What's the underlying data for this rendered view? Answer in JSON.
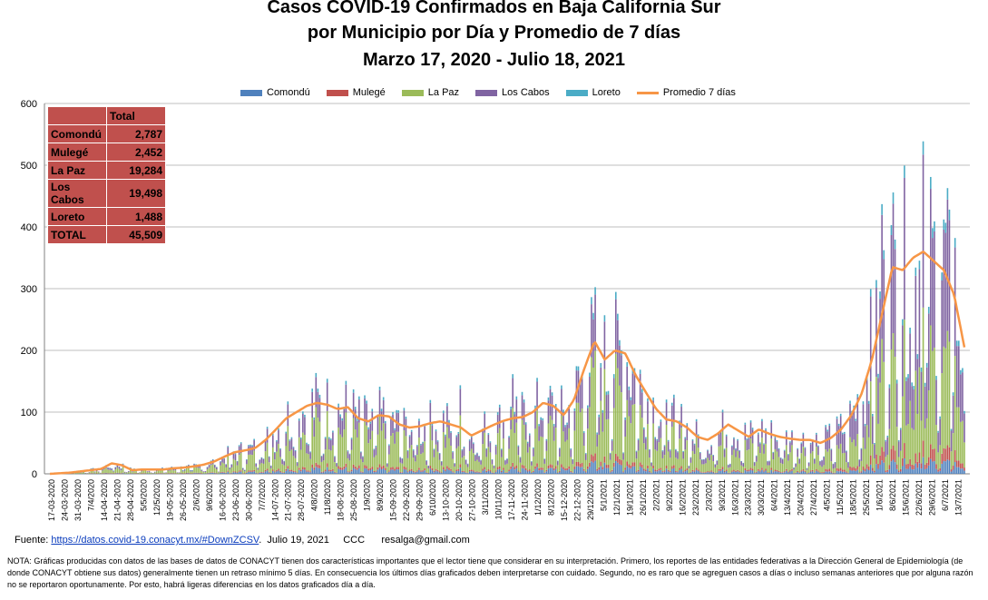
{
  "chart_data": {
    "type": "bar",
    "stacked": true,
    "title": [
      "Casos COVID-19 Confirmados en Baja California Sur",
      "por Municipio por Día y Promedio de 7 días",
      "Marzo 17, 2020 - Julio 18, 2021"
    ],
    "ylim": [
      0,
      600
    ],
    "yticks": [
      0,
      100,
      200,
      300,
      400,
      500,
      600
    ],
    "grid": true,
    "legend_position": "top",
    "series": [
      {
        "name": "Comondú",
        "color": "#4f81bd"
      },
      {
        "name": "Mulegé",
        "color": "#c0504d"
      },
      {
        "name": "La Paz",
        "color": "#9bbb59"
      },
      {
        "name": "Los Cabos",
        "color": "#8064a2"
      },
      {
        "name": "Loreto",
        "color": "#4bacc6"
      },
      {
        "name": "Promedio 7 días",
        "color": "#f79646",
        "type": "line"
      }
    ],
    "x_tick_labels": [
      "17-03-2020",
      "24-03-2020",
      "31-03-2020",
      "7/4/2020",
      "14-04-2020",
      "21-04-2020",
      "28-04-2020",
      "5/5/2020",
      "12/5/2020",
      "19-05-2020",
      "26-05-2020",
      "2/6/2020",
      "9/6/2020",
      "16-06-2020",
      "23-06-2020",
      "30-06-2020",
      "7/7/2020",
      "14-07-2020",
      "21-07-2020",
      "28-07-2020",
      "4/8/2020",
      "11/8/2020",
      "18-08-2020",
      "25-08-2020",
      "1/9/2020",
      "8/9/2020",
      "15-09-2020",
      "22-09-2020",
      "29-09-2020",
      "6/10/2020",
      "13-10-2020",
      "20-10-2020",
      "27-10-2020",
      "3/11/2020",
      "10/11/2020",
      "17-11-2020",
      "24-11-2020",
      "1/12/2020",
      "8/12/2020",
      "15-12-2020",
      "22-12-2020",
      "29/12/2020",
      "5/1/2021",
      "12/1/2021",
      "19/1/2021",
      "26/1/2021",
      "2/2/2021",
      "9/2/2021",
      "16/2/2021",
      "23/2/2021",
      "2/3/2021",
      "9/3/2021",
      "16/3/2021",
      "23/3/2021",
      "30/3/2021",
      "6/4/2021",
      "13/4/2021",
      "20/4/2021",
      "27/4/2021",
      "4/5/2021",
      "11/5/2021",
      "18/5/2021",
      "25/5/2021",
      "1/6/2021",
      "8/6/2021",
      "15/6/2021",
      "22/6/2021",
      "29/6/2021",
      "6/7/2021",
      "13/7/2021"
    ],
    "promedio_7_dias_anchors": [
      [
        0,
        0
      ],
      [
        2,
        2
      ],
      [
        5,
        8
      ],
      [
        6,
        17
      ],
      [
        7,
        14
      ],
      [
        8,
        6
      ],
      [
        9,
        7
      ],
      [
        10,
        7
      ],
      [
        11,
        7
      ],
      [
        12,
        9
      ],
      [
        13,
        10
      ],
      [
        14,
        12
      ],
      [
        15,
        15
      ],
      [
        16,
        20
      ],
      [
        17,
        28
      ],
      [
        18,
        35
      ],
      [
        19,
        38
      ],
      [
        20,
        42
      ],
      [
        21,
        55
      ],
      [
        22,
        72
      ],
      [
        23,
        90
      ],
      [
        24,
        100
      ],
      [
        25,
        110
      ],
      [
        26,
        115
      ],
      [
        27,
        112
      ],
      [
        28,
        105
      ],
      [
        29,
        108
      ],
      [
        30,
        90
      ],
      [
        31,
        85
      ],
      [
        32,
        95
      ],
      [
        33,
        93
      ],
      [
        34,
        80
      ],
      [
        35,
        75
      ],
      [
        36,
        77
      ],
      [
        37,
        82
      ],
      [
        38,
        85
      ],
      [
        39,
        80
      ],
      [
        40,
        75
      ],
      [
        41,
        62
      ],
      [
        42,
        70
      ],
      [
        43,
        78
      ],
      [
        44,
        85
      ],
      [
        45,
        90
      ],
      [
        46,
        92
      ],
      [
        47,
        100
      ],
      [
        48,
        115
      ],
      [
        49,
        110
      ],
      [
        50,
        95
      ],
      [
        51,
        120
      ],
      [
        52,
        170
      ],
      [
        53,
        215
      ],
      [
        54,
        185
      ],
      [
        55,
        200
      ],
      [
        56,
        195
      ],
      [
        57,
        160
      ],
      [
        58,
        132
      ],
      [
        59,
        105
      ],
      [
        60,
        88
      ],
      [
        61,
        85
      ],
      [
        62,
        75
      ],
      [
        63,
        60
      ],
      [
        64,
        55
      ],
      [
        65,
        65
      ],
      [
        66,
        80
      ],
      [
        67,
        70
      ],
      [
        68,
        60
      ],
      [
        69,
        72
      ],
      [
        70,
        65
      ],
      [
        71,
        60
      ],
      [
        72,
        57
      ],
      [
        73,
        55
      ],
      [
        74,
        55
      ],
      [
        75,
        50
      ],
      [
        76,
        58
      ],
      [
        77,
        72
      ],
      [
        78,
        95
      ],
      [
        79,
        130
      ],
      [
        80,
        185
      ],
      [
        81,
        260
      ],
      [
        82,
        335
      ],
      [
        83,
        330
      ],
      [
        84,
        350
      ],
      [
        85,
        360
      ],
      [
        86,
        345
      ],
      [
        87,
        330
      ],
      [
        88,
        290
      ],
      [
        89,
        205
      ]
    ],
    "daily_total_peaks": [
      [
        20,
        50
      ],
      [
        40,
        150
      ],
      [
        45,
        175
      ],
      [
        52,
        210
      ],
      [
        54,
        275
      ],
      [
        56,
        285
      ],
      [
        80,
        300
      ],
      [
        81,
        465
      ],
      [
        84,
        440
      ],
      [
        85,
        555
      ],
      [
        87,
        430
      ],
      [
        88,
        390
      ]
    ]
  },
  "totals_table": {
    "header": "Total",
    "rows": [
      {
        "label": "Comondú",
        "value": "2,787"
      },
      {
        "label": "Mulegé",
        "value": "2,452"
      },
      {
        "label": "La Paz",
        "value": "19,284"
      },
      {
        "label": "Los Cabos",
        "value": "19,498"
      },
      {
        "label": "Loreto",
        "value": "1,488"
      },
      {
        "label": "TOTAL",
        "value": "45,509"
      }
    ]
  },
  "footer": {
    "source_prefix": "Fuente:",
    "source_link": "https://datos.covid-19.conacyt.mx/#DownZCSV",
    "source_suffix": ".  Julio 19, 2021     CCC      resalga@gmail.com",
    "note": "NOTA: Gráficas producidas con datos de las bases de datos de CONACYT tienen dos características importantes que el lector tiene que considerar en su interpretación. Primero, los reportes de las entidades federativas a la Dirección General de Epidemiología (de donde CONACYT obtiene sus datos) generalmente tienen un retraso mínimo 5 días. En consecuencia los últimos días graficados deben interpretarse con cuidado. Segundo, no es raro que se agreguen casos a días o incluso semanas anteriores que por alguna razón no se reportaron oportunamente. Por esto, habrá ligeras diferencias en los datos graficados día a día."
  }
}
